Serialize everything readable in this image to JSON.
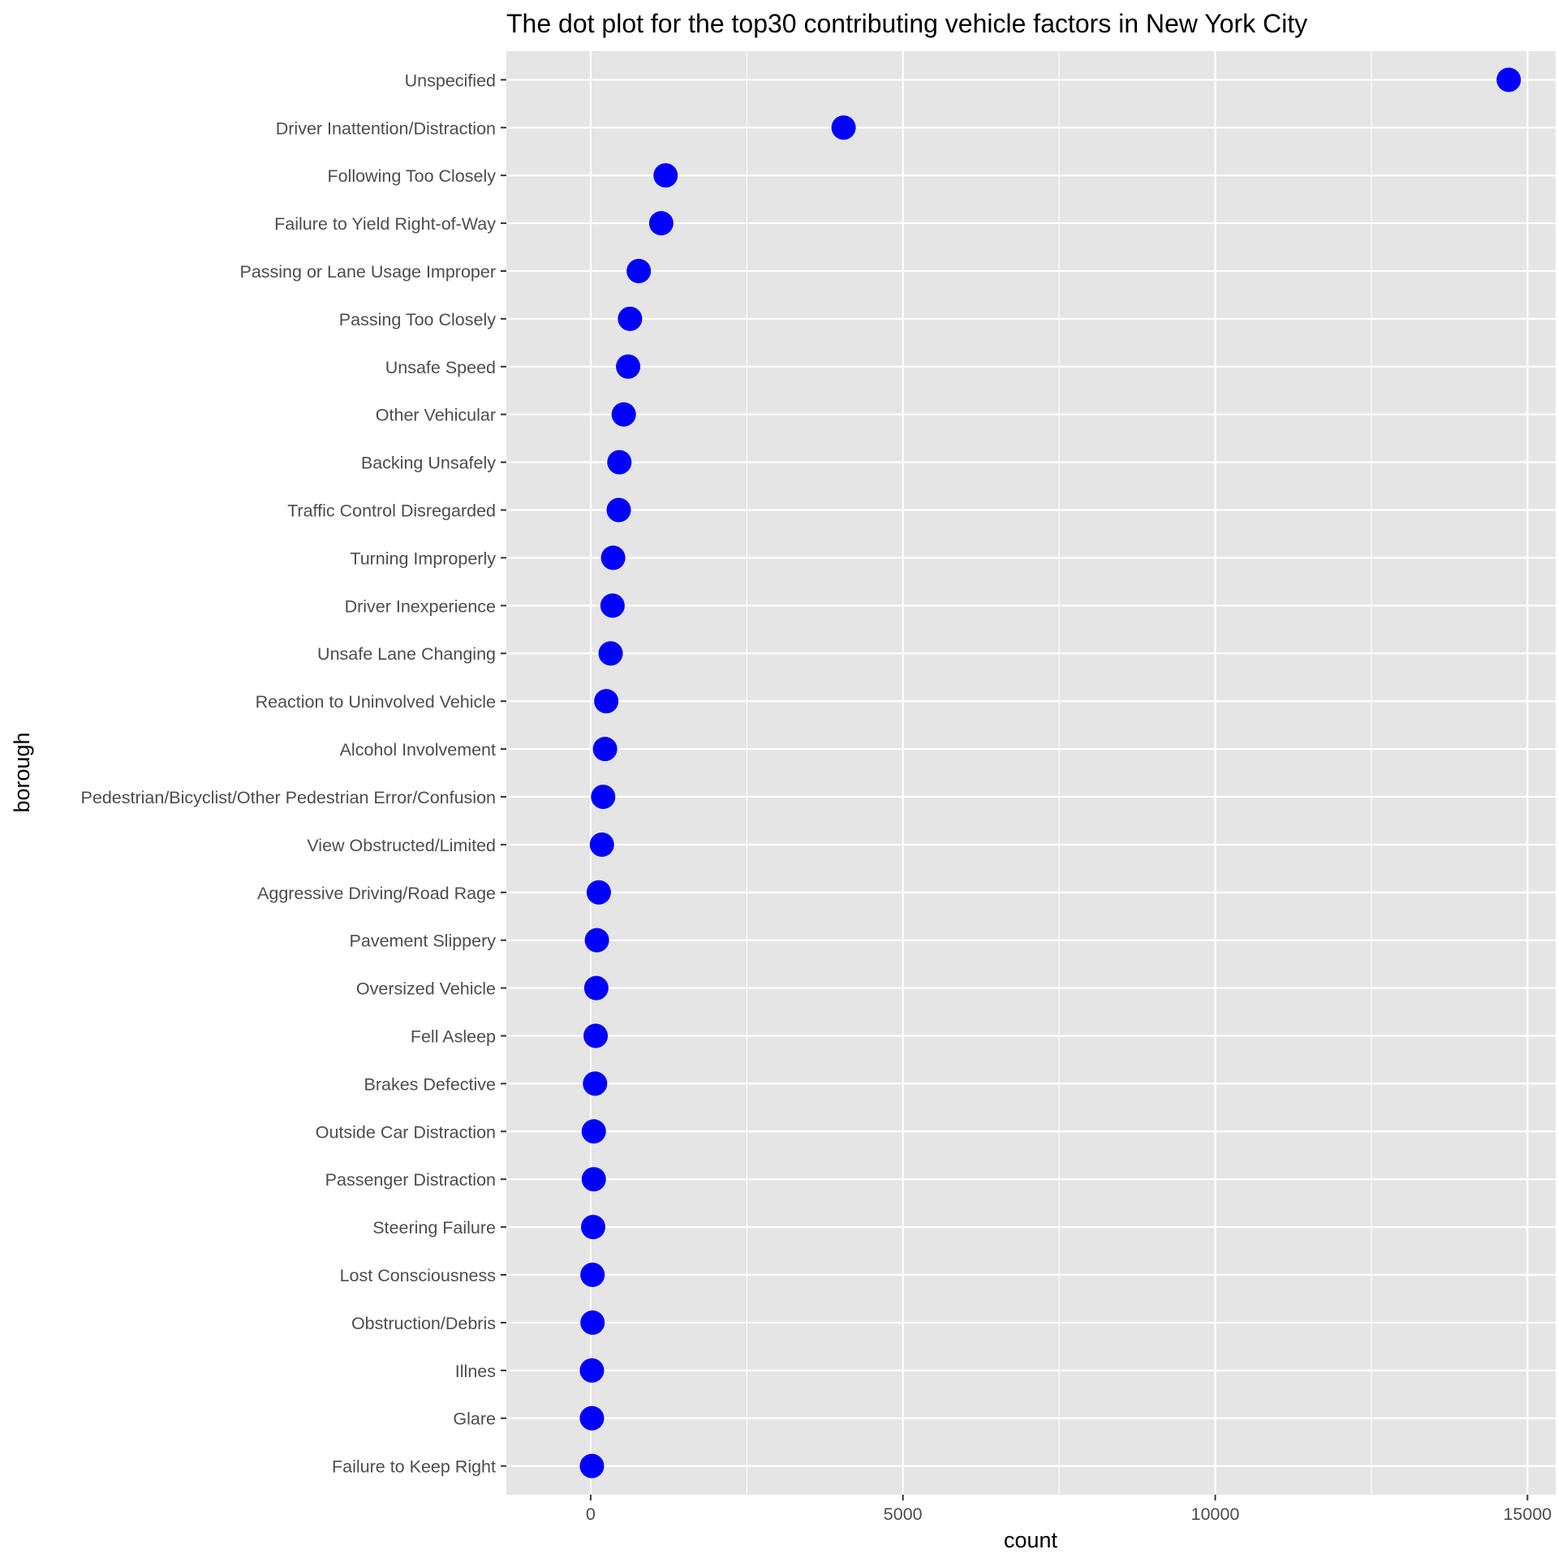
{
  "chart_data": {
    "type": "scatter",
    "title": "The dot plot for the top30 contributing vehicle factors in New York City",
    "xlabel": "count",
    "ylabel": "borough",
    "xlim": [
      -1350,
      15450
    ],
    "x_ticks": [
      0,
      5000,
      10000,
      15000
    ],
    "x_tick_labels": [
      "0",
      "5000",
      "10000",
      "15000"
    ],
    "grid": true,
    "legend": "none",
    "point_color": "#0000ff",
    "panel_color": "#e5e5e5",
    "grid_color": "#ffffff",
    "categories": [
      "Unspecified",
      "Driver Inattention/Distraction",
      "Following Too Closely",
      "Failure to Yield Right-of-Way",
      "Passing or Lane Usage Improper",
      "Passing Too Closely",
      "Unsafe Speed",
      "Other Vehicular",
      "Backing Unsafely",
      "Traffic Control Disregarded",
      "Turning Improperly",
      "Driver Inexperience",
      "Unsafe Lane Changing",
      "Reaction to Uninvolved Vehicle",
      "Alcohol Involvement",
      "Pedestrian/Bicyclist/Other Pedestrian Error/Confusion",
      "View Obstructed/Limited",
      "Aggressive Driving/Road Rage",
      "Pavement Slippery",
      "Oversized Vehicle",
      "Fell Asleep",
      "Brakes Defective",
      "Outside Car Distraction",
      "Passenger Distraction",
      "Steering Failure",
      "Lost Consciousness",
      "Obstruction/Debris",
      "Illnes",
      "Glare",
      "Failure to Keep Right"
    ],
    "values": [
      14700,
      4050,
      1200,
      1130,
      770,
      630,
      600,
      530,
      460,
      450,
      360,
      350,
      320,
      250,
      230,
      200,
      180,
      130,
      100,
      90,
      80,
      70,
      50,
      50,
      40,
      30,
      30,
      20,
      20,
      20
    ]
  }
}
